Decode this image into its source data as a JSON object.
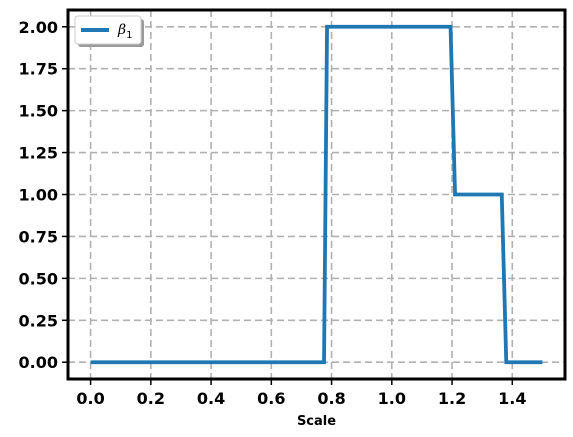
{
  "chart_data": {
    "type": "line",
    "title": "",
    "xlabel": "Scale",
    "ylabel": "",
    "xlim": [
      -0.075,
      1.575
    ],
    "ylim": [
      -0.1,
      2.1
    ],
    "xticks": [
      0.0,
      0.2,
      0.4,
      0.6,
      0.8,
      1.0,
      1.2,
      1.4
    ],
    "xtick_labels": [
      "0.0",
      "0.2",
      "0.4",
      "0.6",
      "0.8",
      "1.0",
      "1.2",
      "1.4"
    ],
    "yticks": [
      0.0,
      0.25,
      0.5,
      0.75,
      1.0,
      1.25,
      1.5,
      1.75,
      2.0
    ],
    "ytick_labels": [
      "0.00",
      "0.25",
      "0.50",
      "0.75",
      "1.00",
      "1.25",
      "1.50",
      "1.75",
      "2.00"
    ],
    "grid": true,
    "grid_style": "dashed",
    "legend_position": "top-left",
    "series": [
      {
        "name": "β1",
        "legend_symbol": "β",
        "legend_subscript": "1",
        "color": "#1f77b4",
        "x": [
          0.0,
          0.775,
          0.785,
          1.195,
          1.21,
          1.365,
          1.38,
          1.5
        ],
        "y": [
          0.0,
          0.0,
          2.0,
          2.0,
          1.0,
          1.0,
          0.0,
          0.0
        ]
      }
    ]
  }
}
